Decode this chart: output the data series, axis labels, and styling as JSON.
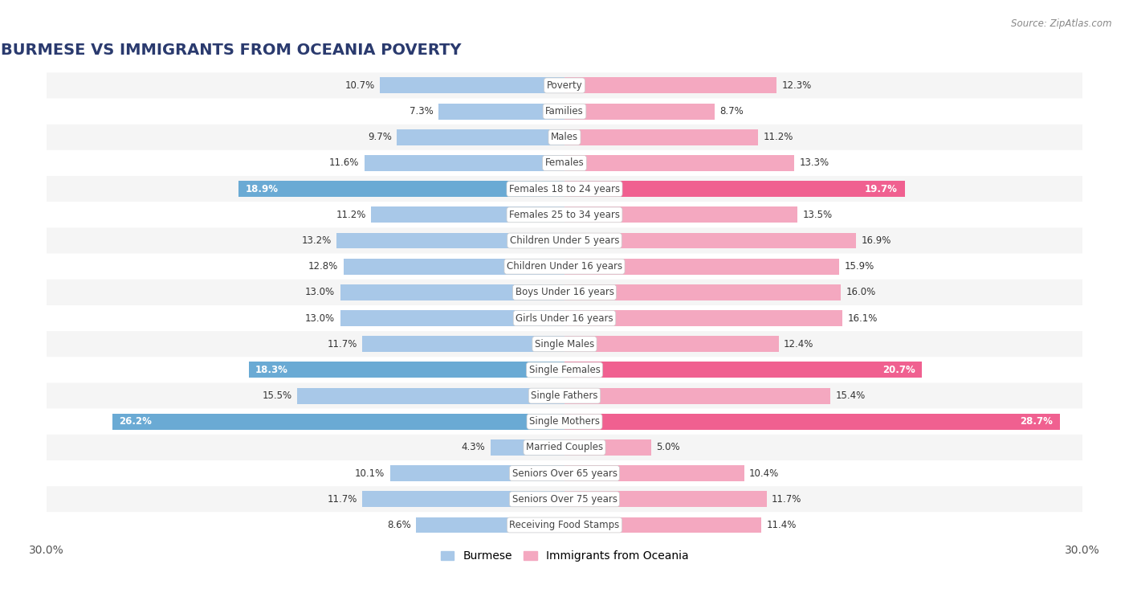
{
  "title": "BURMESE VS IMMIGRANTS FROM OCEANIA POVERTY",
  "source": "Source: ZipAtlas.com",
  "categories": [
    "Poverty",
    "Families",
    "Males",
    "Females",
    "Females 18 to 24 years",
    "Females 25 to 34 years",
    "Children Under 5 years",
    "Children Under 16 years",
    "Boys Under 16 years",
    "Girls Under 16 years",
    "Single Males",
    "Single Females",
    "Single Fathers",
    "Single Mothers",
    "Married Couples",
    "Seniors Over 65 years",
    "Seniors Over 75 years",
    "Receiving Food Stamps"
  ],
  "burmese": [
    10.7,
    7.3,
    9.7,
    11.6,
    18.9,
    11.2,
    13.2,
    12.8,
    13.0,
    13.0,
    11.7,
    18.3,
    15.5,
    26.2,
    4.3,
    10.1,
    11.7,
    8.6
  ],
  "oceania": [
    12.3,
    8.7,
    11.2,
    13.3,
    19.7,
    13.5,
    16.9,
    15.9,
    16.0,
    16.1,
    12.4,
    20.7,
    15.4,
    28.7,
    5.0,
    10.4,
    11.7,
    11.4
  ],
  "burmese_normal_color": "#a8c8e8",
  "oceania_normal_color": "#f4a8c0",
  "burmese_highlight_color": "#6aaad4",
  "oceania_highlight_color": "#f06090",
  "highlight_rows": [
    4,
    11,
    13
  ],
  "row_even_color": "#f5f5f5",
  "row_odd_color": "#ffffff",
  "xlim": 30.0,
  "bar_height": 0.62,
  "label_fontsize": 8.5,
  "category_fontsize": 8.5,
  "title_fontsize": 14,
  "legend_labels": [
    "Burmese",
    "Immigrants from Oceania"
  ],
  "xlabel_fontsize": 10
}
